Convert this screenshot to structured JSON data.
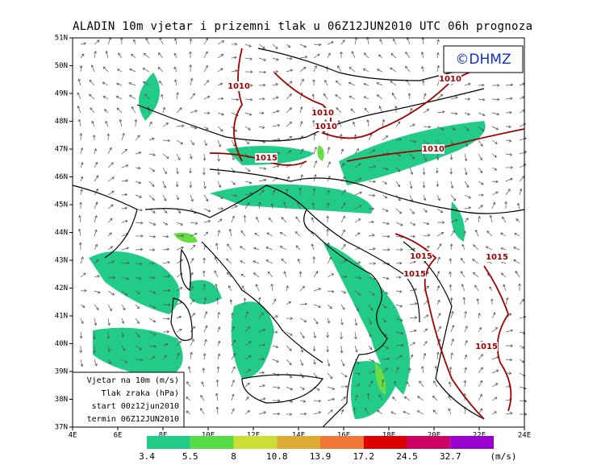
{
  "title": "ALADIN 10m vjetar i prizemni tlak u 06Z12JUN2010 UTC 06h prognoza",
  "watermark": "©DHMZ",
  "map": {
    "lat_labels": [
      "37N",
      "38N",
      "39N",
      "40N",
      "41N",
      "42N",
      "43N",
      "44N",
      "45N",
      "46N",
      "47N",
      "48N",
      "49N",
      "50N",
      "51N"
    ],
    "lon_labels": [
      "4E",
      "6E",
      "8E",
      "10E",
      "12E",
      "14E",
      "16E",
      "18E",
      "20E",
      "22E",
      "24E"
    ],
    "isobar_labels": [
      "1010",
      "1010",
      "1010",
      "1010",
      "1010",
      "1015",
      "1015",
      "1015",
      "1015",
      "1015"
    ],
    "isobar_color": "#a00000"
  },
  "info_box": [
    "Vjetar na 10m (m/s)",
    "Tlak zraka (hPa)",
    "start 00z12jun2010",
    "termin 06Z12JUN2010"
  ],
  "colorbar": {
    "labels": [
      "3.4",
      "5.5",
      "8",
      "10.8",
      "13.9",
      "17.2",
      "24.5",
      "32.7"
    ],
    "colors": [
      "#20cc88",
      "#55dd44",
      "#ccdd33",
      "#ddaa33",
      "#ee7733",
      "#dd0000",
      "#cc0066",
      "#9900cc"
    ],
    "unit": "(m/s)"
  }
}
